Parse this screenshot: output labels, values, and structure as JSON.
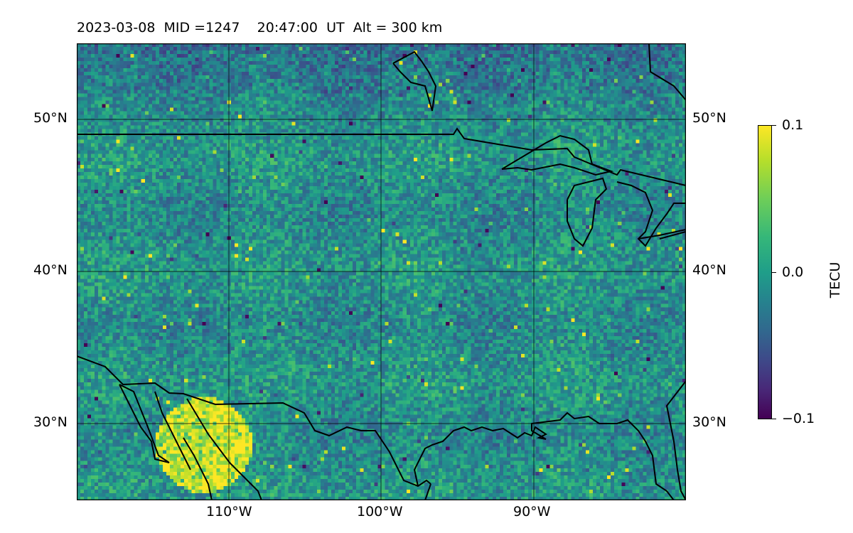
{
  "title": {
    "date": "2023-03-08",
    "mid": "MID =1247",
    "time": "20:47:00",
    "ut": "UT",
    "alt": "Alt = 300 km"
  },
  "map": {
    "lon_range": [
      -120,
      -80
    ],
    "lat_range": [
      25,
      55
    ],
    "lat_ticks": [
      {
        "value": 50,
        "label": "50°N"
      },
      {
        "value": 40,
        "label": "40°N"
      },
      {
        "value": 30,
        "label": "30°N"
      }
    ],
    "lon_ticks": [
      {
        "value": -110,
        "label": "110°W"
      },
      {
        "value": -100,
        "label": "100°W"
      },
      {
        "value": -90,
        "label": "90°W"
      }
    ],
    "gridlines": true,
    "coastline_color": "#000000"
  },
  "colorbar": {
    "label": "TECU",
    "max_label": "0.1",
    "mid_label": "0.0",
    "min_label": "−0.1",
    "range": [
      -0.1,
      0.1
    ],
    "colormap": "viridis"
  }
}
